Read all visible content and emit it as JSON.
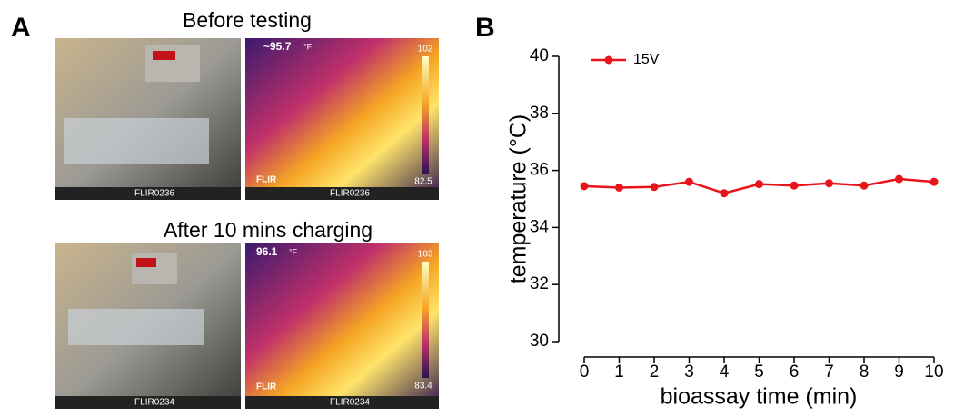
{
  "panels": {
    "a_label": "A",
    "b_label": "B",
    "before_caption": "Before testing",
    "after_caption": "After 10 mins charging",
    "photos": [
      {
        "footer": "FLIR0236"
      },
      {
        "reading": "~95.7",
        "unit": "°F",
        "scale_max": "102",
        "scale_min": "82.5",
        "logo": "FLIR",
        "footer": "FLIR0236"
      },
      {
        "footer": "FLIR0234"
      },
      {
        "reading": "96.1",
        "unit": "°F",
        "scale_max": "103",
        "scale_min": "83.4",
        "logo": "FLIR",
        "footer": "FLIR0234"
      }
    ]
  },
  "chart_data": {
    "type": "line",
    "x_label": "bioassay time (min)",
    "y_label": "temperature (°C)",
    "x": [
      0,
      1,
      2,
      3,
      4,
      5,
      6,
      7,
      8,
      9,
      10
    ],
    "series": [
      {
        "name": "15V",
        "color": "#e8141b",
        "values": [
          35.45,
          35.4,
          35.42,
          35.6,
          35.2,
          35.52,
          35.47,
          35.55,
          35.47,
          35.7,
          35.6
        ]
      }
    ],
    "xlim": [
      0,
      10
    ],
    "xticks": [
      0,
      1,
      2,
      3,
      4,
      5,
      6,
      7,
      8,
      9,
      10
    ],
    "ylim": [
      30,
      40
    ],
    "yticks": [
      30,
      32,
      34,
      36,
      38,
      40
    ],
    "legend": "top-left"
  }
}
